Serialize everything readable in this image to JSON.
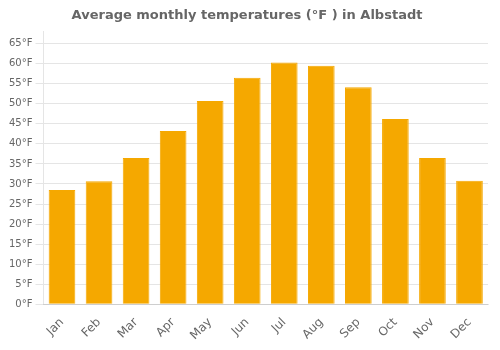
{
  "chart_data": {
    "type": "bar",
    "title": "Average monthly temperatures (°F ) in Albstadt",
    "categories": [
      "Jan",
      "Feb",
      "Mar",
      "Apr",
      "May",
      "Jun",
      "Jul",
      "Aug",
      "Sep",
      "Oct",
      "Nov",
      "Dec"
    ],
    "values": [
      28.5,
      30.7,
      36.5,
      43.2,
      50.7,
      56.5,
      60.3,
      59.5,
      54.1,
      46.2,
      36.5,
      30.8
    ],
    "color": "#F5A800",
    "ylim": [
      0,
      68
    ],
    "yticks": [
      {
        "value": 0,
        "label": "0°F"
      },
      {
        "value": 5,
        "label": "5°F"
      },
      {
        "value": 10,
        "label": "10°F"
      },
      {
        "value": 15,
        "label": "15°F"
      },
      {
        "value": 20,
        "label": "20°F"
      },
      {
        "value": 25,
        "label": "25°F"
      },
      {
        "value": 30,
        "label": "30°F"
      },
      {
        "value": 35,
        "label": "35°F"
      },
      {
        "value": 40,
        "label": "40°F"
      },
      {
        "value": 45,
        "label": "45°F"
      },
      {
        "value": 50,
        "label": "50°F"
      },
      {
        "value": 55,
        "label": "55°F"
      },
      {
        "value": 60,
        "label": "60°F"
      },
      {
        "value": 65,
        "label": "65°F"
      }
    ],
    "grid": true
  }
}
